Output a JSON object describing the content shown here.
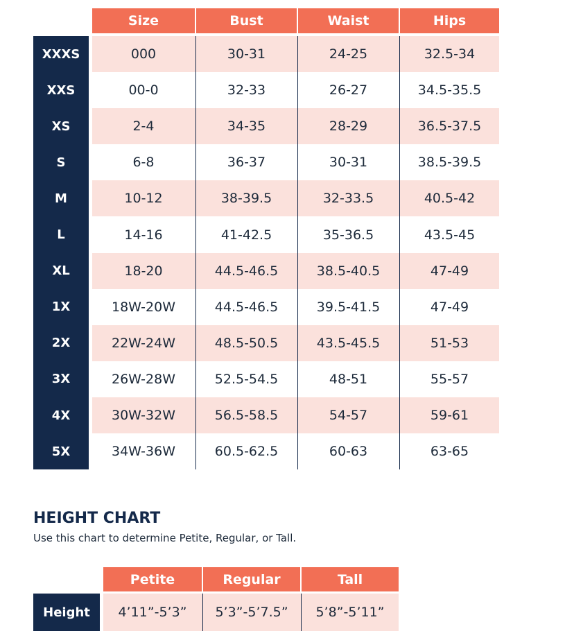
{
  "size_chart": {
    "headers": [
      "Size",
      "Bust",
      "Waist",
      "Hips"
    ],
    "rows": [
      {
        "label": "XXXS",
        "cells": [
          "000",
          "30-31",
          "24-25",
          "32.5-34"
        ]
      },
      {
        "label": "XXS",
        "cells": [
          "00-0",
          "32-33",
          "26-27",
          "34.5-35.5"
        ]
      },
      {
        "label": "XS",
        "cells": [
          "2-4",
          "34-35",
          "28-29",
          "36.5-37.5"
        ]
      },
      {
        "label": "S",
        "cells": [
          "6-8",
          "36-37",
          "30-31",
          "38.5-39.5"
        ]
      },
      {
        "label": "M",
        "cells": [
          "10-12",
          "38-39.5",
          "32-33.5",
          "40.5-42"
        ]
      },
      {
        "label": "L",
        "cells": [
          "14-16",
          "41-42.5",
          "35-36.5",
          "43.5-45"
        ]
      },
      {
        "label": "XL",
        "cells": [
          "18-20",
          "44.5-46.5",
          "38.5-40.5",
          "47-49"
        ]
      },
      {
        "label": "1X",
        "cells": [
          "18W-20W",
          "44.5-46.5",
          "39.5-41.5",
          "47-49"
        ]
      },
      {
        "label": "2X",
        "cells": [
          "22W-24W",
          "48.5-50.5",
          "43.5-45.5",
          "51-53"
        ]
      },
      {
        "label": "3X",
        "cells": [
          "26W-28W",
          "52.5-54.5",
          "48-51",
          "55-57"
        ]
      },
      {
        "label": "4X",
        "cells": [
          "30W-32W",
          "56.5-58.5",
          "54-57",
          "59-61"
        ]
      },
      {
        "label": "5X",
        "cells": [
          "34W-36W",
          "60.5-62.5",
          "60-63",
          "63-65"
        ]
      }
    ]
  },
  "height_chart": {
    "title": "HEIGHT CHART",
    "subtitle": "Use this chart to determine Petite, Regular, or Tall.",
    "headers": [
      "Petite",
      "Regular",
      "Tall"
    ],
    "rows": [
      {
        "label": "Height",
        "cells": [
          "4’11”-5’3”",
          "5’3”-5’7.5”",
          "5’8”-5’11”"
        ]
      }
    ]
  }
}
